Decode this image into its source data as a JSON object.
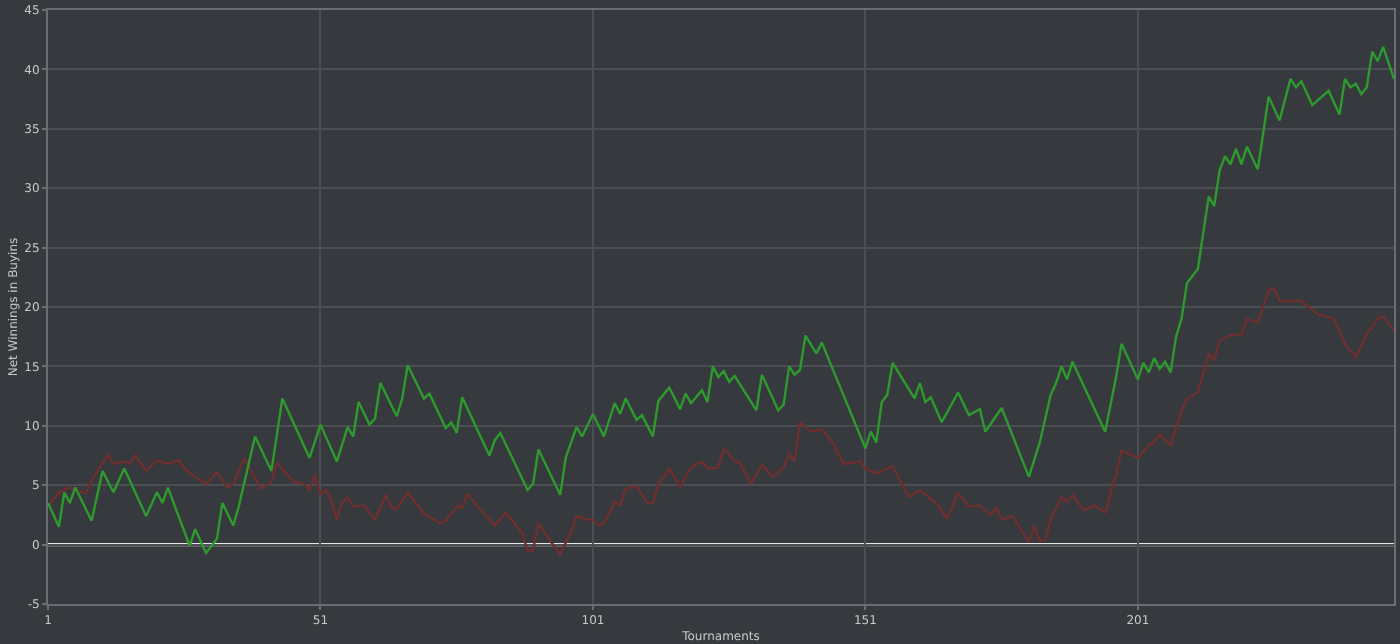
{
  "chart_data": {
    "type": "line",
    "xlabel": "Tournaments",
    "ylabel": "Net Winnings in Buyins",
    "xlim": [
      1,
      248
    ],
    "xticks": [
      1,
      51,
      101,
      151,
      201
    ],
    "ylim": [
      -5,
      45
    ],
    "yticks": [
      -5,
      0,
      5,
      10,
      15,
      20,
      25,
      30,
      35,
      40,
      45
    ],
    "grid": true,
    "marker": "none",
    "line_style": "solid",
    "ref_lines": [
      {
        "axis": "y",
        "value": 0,
        "color": "#e6e6e6"
      }
    ],
    "series": [
      {
        "color": "#6e2f2f",
        "x": [
          1,
          3,
          5,
          6,
          8,
          9,
          12,
          13,
          15,
          16,
          17,
          19,
          21,
          23,
          25,
          26,
          28,
          30,
          32,
          34,
          35,
          37,
          40,
          42,
          43,
          46,
          48,
          49,
          50,
          51,
          52,
          53,
          54,
          55,
          56,
          57,
          59,
          61,
          63,
          64,
          65,
          67,
          70,
          73,
          74,
          76,
          77,
          78,
          80,
          83,
          85,
          88,
          89,
          90,
          91,
          93,
          95,
          97,
          98,
          100,
          101,
          102,
          103,
          105,
          106,
          107,
          109,
          111,
          112,
          113,
          115,
          117,
          119,
          121,
          122,
          124,
          125,
          127,
          128,
          130,
          132,
          134,
          136,
          137,
          138,
          139,
          141,
          143,
          145,
          147,
          150,
          151,
          153,
          156,
          159,
          161,
          164,
          166,
          168,
          170,
          172,
          174,
          175,
          176,
          178,
          181,
          182,
          183,
          184,
          185,
          187,
          188,
          189,
          191,
          193,
          195,
          197,
          198,
          201,
          203,
          204,
          205,
          207,
          209,
          210,
          212,
          214,
          215,
          216,
          218,
          220,
          221,
          223,
          225,
          226,
          227,
          229,
          231,
          234,
          237,
          239,
          241,
          243,
          245,
          246,
          248
        ],
        "values": [
          3.2,
          4.4,
          4.8,
          4.6,
          4.3,
          5.4,
          7.6,
          6.8,
          7.0,
          6.8,
          7.5,
          6.2,
          7.1,
          6.8,
          7.1,
          6.4,
          5.7,
          5.1,
          6.1,
          4.8,
          5.1,
          7.3,
          4.7,
          5.3,
          6.9,
          5.3,
          5.1,
          4.6,
          5.9,
          4.2,
          4.6,
          3.7,
          2.1,
          3.6,
          4.0,
          3.2,
          3.3,
          2.1,
          4.2,
          3.1,
          3.0,
          4.4,
          2.6,
          1.8,
          2.0,
          3.2,
          3.1,
          4.3,
          3.1,
          1.6,
          2.7,
          1.0,
          -0.5,
          -0.5,
          1.8,
          0.4,
          -0.8,
          1.1,
          2.4,
          2.1,
          2.1,
          1.6,
          1.8,
          3.6,
          3.3,
          4.7,
          4.9,
          3.5,
          3.5,
          5.1,
          6.4,
          4.9,
          6.5,
          7.0,
          6.4,
          6.5,
          8.1,
          7.0,
          6.9,
          5.1,
          6.7,
          5.7,
          6.5,
          7.6,
          7.0,
          10.3,
          9.5,
          9.7,
          8.6,
          6.8,
          7.0,
          6.4,
          6.0,
          6.6,
          4.0,
          4.6,
          3.5,
          2.2,
          4.3,
          3.2,
          3.3,
          2.5,
          3.1,
          2.1,
          2.4,
          0.2,
          1.6,
          0.3,
          0.4,
          2.1,
          4.0,
          3.6,
          4.2,
          2.9,
          3.3,
          2.7,
          5.9,
          7.9,
          7.3,
          8.4,
          8.6,
          9.3,
          8.4,
          11.2,
          12.3,
          12.8,
          16.1,
          15.5,
          17.2,
          17.6,
          17.7,
          19.0,
          18.7,
          21.4,
          21.6,
          20.5,
          20.5,
          20.5,
          19.4,
          19.0,
          16.9,
          15.8,
          17.7,
          19.0,
          19.2,
          18.0
        ]
      },
      {
        "color": "#2e9a2e",
        "x": [
          1,
          3,
          4,
          5,
          6,
          9,
          11,
          13,
          15,
          19,
          21,
          22,
          23,
          27,
          28,
          30,
          32,
          33,
          35,
          36,
          39,
          42,
          44,
          49,
          51,
          54,
          56,
          57,
          58,
          60,
          61,
          62,
          65,
          66,
          67,
          70,
          71,
          74,
          75,
          76,
          77,
          82,
          83,
          84,
          89,
          90,
          91,
          95,
          96,
          98,
          99,
          101,
          103,
          105,
          106,
          107,
          109,
          110,
          112,
          113,
          115,
          117,
          118,
          119,
          121,
          122,
          123,
          124,
          125,
          126,
          127,
          131,
          132,
          135,
          136,
          137,
          138,
          139,
          140,
          142,
          143,
          151,
          152,
          153,
          154,
          155,
          156,
          160,
          161,
          162,
          163,
          165,
          168,
          170,
          172,
          173,
          176,
          181,
          183,
          185,
          186,
          187,
          188,
          189,
          195,
          197,
          198,
          201,
          202,
          203,
          204,
          205,
          206,
          207,
          208,
          209,
          210,
          212,
          214,
          215,
          216,
          217,
          218,
          219,
          220,
          221,
          223,
          225,
          227,
          229,
          230,
          231,
          233,
          236,
          238,
          239,
          240,
          241,
          242,
          243,
          244,
          245,
          246,
          248
        ],
        "values": [
          3.5,
          1.5,
          4.4,
          3.5,
          4.8,
          2.0,
          6.2,
          4.4,
          6.4,
          2.4,
          4.4,
          3.5,
          4.8,
          -0.1,
          1.3,
          -0.7,
          0.5,
          3.5,
          1.6,
          3.2,
          9.1,
          6.2,
          12.3,
          7.3,
          10.1,
          7.0,
          9.9,
          9.1,
          12.0,
          10.1,
          10.6,
          13.6,
          10.8,
          12.3,
          15.1,
          12.3,
          12.7,
          9.8,
          10.3,
          9.4,
          12.4,
          7.5,
          8.8,
          9.4,
          4.6,
          5.1,
          8.0,
          4.2,
          7.3,
          9.9,
          9.1,
          11.0,
          9.1,
          11.9,
          11.0,
          12.3,
          10.5,
          10.9,
          9.1,
          12.1,
          13.2,
          11.4,
          12.7,
          11.9,
          13.0,
          12.0,
          15.0,
          14.1,
          14.6,
          13.7,
          14.2,
          11.3,
          14.3,
          11.3,
          11.8,
          15.0,
          14.3,
          14.7,
          17.6,
          16.1,
          17.0,
          8.1,
          9.5,
          8.6,
          12.0,
          12.6,
          15.3,
          12.3,
          13.6,
          12.0,
          12.4,
          10.3,
          12.8,
          10.9,
          11.4,
          9.5,
          11.5,
          5.7,
          8.6,
          12.6,
          13.6,
          15.0,
          13.9,
          15.4,
          9.5,
          14.1,
          16.9,
          13.9,
          15.3,
          14.5,
          15.7,
          14.8,
          15.4,
          14.5,
          17.5,
          19.0,
          22.0,
          23.2,
          29.3,
          28.5,
          31.5,
          32.7,
          32.0,
          33.3,
          32.0,
          33.5,
          31.6,
          37.7,
          35.7,
          39.2,
          38.5,
          39.0,
          37.0,
          38.2,
          36.2,
          39.2,
          38.5,
          38.8,
          37.9,
          38.5,
          41.5,
          40.7,
          41.9,
          39.2
        ]
      }
    ]
  }
}
